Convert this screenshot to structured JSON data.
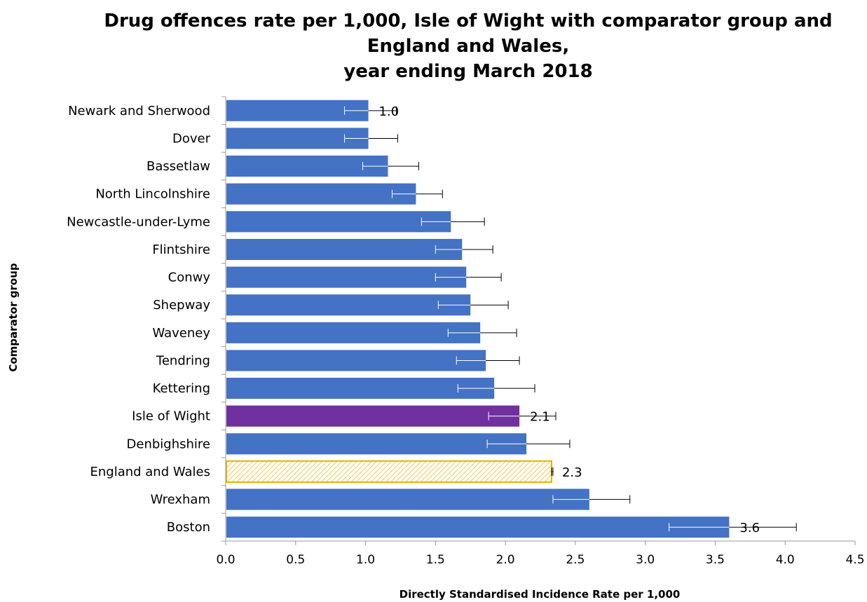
{
  "chart_data": {
    "type": "bar",
    "orientation": "horizontal",
    "title_lines": [
      "Drug offences rate per 1,000, Isle of Wight with comparator group and",
      "England and Wales,",
      "year ending March 2018"
    ],
    "xlabel": "Directly Standardised Incidence Rate per 1,000",
    "ylabel": "Comparator group",
    "xlim": [
      0.0,
      4.5
    ],
    "xticks": [
      "0.0",
      "0.5",
      "1.0",
      "1.5",
      "2.0",
      "2.5",
      "3.0",
      "3.5",
      "4.0",
      "4.5"
    ],
    "grid": false,
    "colors": {
      "default_bar": "#4472C4",
      "highlight_bar": "#7030A0",
      "reference_bar_border": "#E5B400",
      "reference_bar_hatch": "#F2C94C",
      "error_bar_inside": "#ffffff",
      "error_bar_outside": "#000000"
    },
    "bars": [
      {
        "label": "Newark and Sherwood",
        "value": 1.02,
        "err_low": 0.85,
        "err_high": 1.22,
        "style": "default",
        "data_label": "1.0"
      },
      {
        "label": "Dover",
        "value": 1.02,
        "err_low": 0.85,
        "err_high": 1.23,
        "style": "default",
        "data_label": ""
      },
      {
        "label": "Bassetlaw",
        "value": 1.16,
        "err_low": 0.98,
        "err_high": 1.38,
        "style": "default",
        "data_label": ""
      },
      {
        "label": "North Lincolnshire",
        "value": 1.36,
        "err_low": 1.19,
        "err_high": 1.55,
        "style": "default",
        "data_label": ""
      },
      {
        "label": "Newcastle-under-Lyme",
        "value": 1.61,
        "err_low": 1.4,
        "err_high": 1.85,
        "style": "default",
        "data_label": ""
      },
      {
        "label": "Flintshire",
        "value": 1.69,
        "err_low": 1.5,
        "err_high": 1.91,
        "style": "default",
        "data_label": ""
      },
      {
        "label": "Conwy",
        "value": 1.72,
        "err_low": 1.5,
        "err_high": 1.97,
        "style": "default",
        "data_label": ""
      },
      {
        "label": "Shepway",
        "value": 1.75,
        "err_low": 1.52,
        "err_high": 2.02,
        "style": "default",
        "data_label": ""
      },
      {
        "label": "Waveney",
        "value": 1.82,
        "err_low": 1.59,
        "err_high": 2.08,
        "style": "default",
        "data_label": ""
      },
      {
        "label": "Tendring",
        "value": 1.86,
        "err_low": 1.65,
        "err_high": 2.1,
        "style": "default",
        "data_label": ""
      },
      {
        "label": "Kettering",
        "value": 1.92,
        "err_low": 1.66,
        "err_high": 2.21,
        "style": "default",
        "data_label": ""
      },
      {
        "label": "Isle of Wight",
        "value": 2.1,
        "err_low": 1.88,
        "err_high": 2.36,
        "style": "highlight",
        "data_label": "2.1"
      },
      {
        "label": "Denbighshire",
        "value": 2.15,
        "err_low": 1.87,
        "err_high": 2.46,
        "style": "default",
        "data_label": ""
      },
      {
        "label": "England and Wales",
        "value": 2.33,
        "err_low": 2.33,
        "err_high": 2.34,
        "style": "reference",
        "data_label": "2.3"
      },
      {
        "label": "Wrexham",
        "value": 2.6,
        "err_low": 2.34,
        "err_high": 2.89,
        "style": "default",
        "data_label": ""
      },
      {
        "label": "Boston",
        "value": 3.6,
        "err_low": 3.17,
        "err_high": 4.08,
        "style": "default",
        "data_label": "3.6"
      }
    ]
  }
}
